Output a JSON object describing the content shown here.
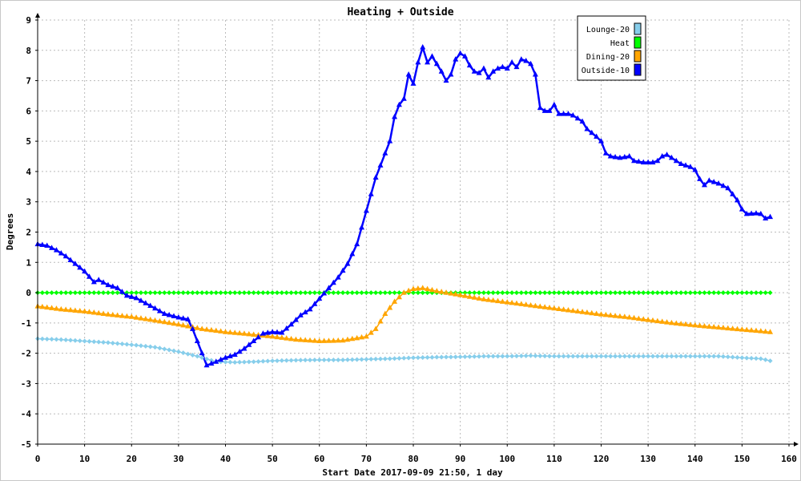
{
  "chart_data": {
    "type": "line",
    "title": "Heating + Outside",
    "xlabel": "Start Date 2017-09-09 21:50, 1 day",
    "ylabel": "Degrees",
    "xlim": [
      0,
      160
    ],
    "ylim": [
      -5,
      9
    ],
    "xticks": [
      0,
      10,
      20,
      30,
      40,
      50,
      60,
      70,
      80,
      90,
      100,
      110,
      120,
      130,
      140,
      150,
      160
    ],
    "yticks": [
      -5,
      -4,
      -3,
      -2,
      -1,
      0,
      1,
      2,
      3,
      4,
      5,
      6,
      7,
      8,
      9
    ],
    "grid": true,
    "legend_position": "top-right",
    "series": [
      {
        "name": "Lounge-20",
        "color": "#87CEEB",
        "marker": "diamond",
        "points": [
          [
            0,
            -1.52
          ],
          [
            5,
            -1.55
          ],
          [
            10,
            -1.6
          ],
          [
            15,
            -1.65
          ],
          [
            20,
            -1.72
          ],
          [
            25,
            -1.8
          ],
          [
            30,
            -1.95
          ],
          [
            34,
            -2.1
          ],
          [
            38,
            -2.28
          ],
          [
            42,
            -2.3
          ],
          [
            46,
            -2.28
          ],
          [
            50,
            -2.25
          ],
          [
            55,
            -2.23
          ],
          [
            60,
            -2.22
          ],
          [
            65,
            -2.22
          ],
          [
            70,
            -2.2
          ],
          [
            75,
            -2.18
          ],
          [
            80,
            -2.15
          ],
          [
            85,
            -2.13
          ],
          [
            90,
            -2.12
          ],
          [
            95,
            -2.1
          ],
          [
            100,
            -2.1
          ],
          [
            105,
            -2.08
          ],
          [
            110,
            -2.1
          ],
          [
            115,
            -2.1
          ],
          [
            120,
            -2.1
          ],
          [
            125,
            -2.1
          ],
          [
            130,
            -2.1
          ],
          [
            135,
            -2.1
          ],
          [
            140,
            -2.1
          ],
          [
            145,
            -2.1
          ],
          [
            150,
            -2.15
          ],
          [
            154,
            -2.18
          ],
          [
            156,
            -2.25
          ]
        ]
      },
      {
        "name": "Heat",
        "color": "#00FF00",
        "marker": "diamond",
        "points": [
          [
            0,
            0
          ],
          [
            20,
            0
          ],
          [
            40,
            0
          ],
          [
            60,
            0
          ],
          [
            80,
            0
          ],
          [
            100,
            0
          ],
          [
            120,
            0
          ],
          [
            140,
            0
          ],
          [
            156,
            0
          ]
        ]
      },
      {
        "name": "Dining-20",
        "color": "#FFA500",
        "marker": "triangle",
        "points": [
          [
            0,
            -0.45
          ],
          [
            5,
            -0.55
          ],
          [
            10,
            -0.62
          ],
          [
            15,
            -0.72
          ],
          [
            20,
            -0.8
          ],
          [
            25,
            -0.92
          ],
          [
            30,
            -1.05
          ],
          [
            35,
            -1.2
          ],
          [
            40,
            -1.3
          ],
          [
            45,
            -1.37
          ],
          [
            50,
            -1.45
          ],
          [
            55,
            -1.55
          ],
          [
            60,
            -1.6
          ],
          [
            65,
            -1.58
          ],
          [
            70,
            -1.45
          ],
          [
            72,
            -1.2
          ],
          [
            74,
            -0.7
          ],
          [
            76,
            -0.3
          ],
          [
            78,
            0.0
          ],
          [
            80,
            0.12
          ],
          [
            82,
            0.15
          ],
          [
            85,
            0.05
          ],
          [
            90,
            -0.08
          ],
          [
            95,
            -0.22
          ],
          [
            100,
            -0.32
          ],
          [
            105,
            -0.42
          ],
          [
            110,
            -0.52
          ],
          [
            115,
            -0.62
          ],
          [
            120,
            -0.72
          ],
          [
            125,
            -0.8
          ],
          [
            130,
            -0.9
          ],
          [
            135,
            -1.0
          ],
          [
            140,
            -1.08
          ],
          [
            145,
            -1.15
          ],
          [
            150,
            -1.22
          ],
          [
            156,
            -1.3
          ]
        ]
      },
      {
        "name": "Outside-10",
        "color": "#0000FF",
        "marker": "triangle",
        "points": [
          [
            0,
            1.6
          ],
          [
            2,
            1.55
          ],
          [
            4,
            1.4
          ],
          [
            6,
            1.2
          ],
          [
            8,
            0.95
          ],
          [
            10,
            0.7
          ],
          [
            12,
            0.35
          ],
          [
            13,
            0.42
          ],
          [
            15,
            0.25
          ],
          [
            17,
            0.15
          ],
          [
            19,
            -0.1
          ],
          [
            21,
            -0.18
          ],
          [
            23,
            -0.35
          ],
          [
            25,
            -0.52
          ],
          [
            27,
            -0.7
          ],
          [
            30,
            -0.82
          ],
          [
            32,
            -0.88
          ],
          [
            33,
            -1.2
          ],
          [
            34,
            -1.6
          ],
          [
            35,
            -2.0
          ],
          [
            36,
            -2.4
          ],
          [
            38,
            -2.28
          ],
          [
            40,
            -2.15
          ],
          [
            42,
            -2.05
          ],
          [
            44,
            -1.85
          ],
          [
            46,
            -1.6
          ],
          [
            48,
            -1.35
          ],
          [
            50,
            -1.3
          ],
          [
            52,
            -1.32
          ],
          [
            54,
            -1.05
          ],
          [
            56,
            -0.75
          ],
          [
            58,
            -0.55
          ],
          [
            60,
            -0.2
          ],
          [
            62,
            0.15
          ],
          [
            64,
            0.5
          ],
          [
            66,
            0.95
          ],
          [
            68,
            1.6
          ],
          [
            70,
            2.7
          ],
          [
            72,
            3.8
          ],
          [
            74,
            4.6
          ],
          [
            75,
            5.0
          ],
          [
            76,
            5.8
          ],
          [
            77,
            6.2
          ],
          [
            78,
            6.4
          ],
          [
            79,
            7.2
          ],
          [
            80,
            6.9
          ],
          [
            81,
            7.6
          ],
          [
            82,
            8.1
          ],
          [
            83,
            7.6
          ],
          [
            84,
            7.8
          ],
          [
            86,
            7.3
          ],
          [
            87,
            7.0
          ],
          [
            88,
            7.2
          ],
          [
            89,
            7.7
          ],
          [
            90,
            7.9
          ],
          [
            91,
            7.8
          ],
          [
            92,
            7.5
          ],
          [
            93,
            7.3
          ],
          [
            94,
            7.25
          ],
          [
            95,
            7.4
          ],
          [
            96,
            7.1
          ],
          [
            97,
            7.3
          ],
          [
            98,
            7.4
          ],
          [
            99,
            7.45
          ],
          [
            100,
            7.4
          ],
          [
            101,
            7.6
          ],
          [
            102,
            7.45
          ],
          [
            103,
            7.7
          ],
          [
            104,
            7.65
          ],
          [
            105,
            7.55
          ],
          [
            106,
            7.2
          ],
          [
            107,
            6.1
          ],
          [
            108,
            6.0
          ],
          [
            109,
            6.0
          ],
          [
            110,
            6.2
          ],
          [
            111,
            5.9
          ],
          [
            113,
            5.9
          ],
          [
            114,
            5.85
          ],
          [
            116,
            5.65
          ],
          [
            117,
            5.4
          ],
          [
            119,
            5.15
          ],
          [
            120,
            5.0
          ],
          [
            121,
            4.6
          ],
          [
            122,
            4.5
          ],
          [
            124,
            4.45
          ],
          [
            126,
            4.5
          ],
          [
            127,
            4.35
          ],
          [
            129,
            4.3
          ],
          [
            131,
            4.3
          ],
          [
            132,
            4.35
          ],
          [
            133,
            4.5
          ],
          [
            134,
            4.55
          ],
          [
            135,
            4.45
          ],
          [
            137,
            4.25
          ],
          [
            139,
            4.15
          ],
          [
            140,
            4.05
          ],
          [
            141,
            3.75
          ],
          [
            142,
            3.55
          ],
          [
            143,
            3.7
          ],
          [
            145,
            3.6
          ],
          [
            147,
            3.45
          ],
          [
            148,
            3.25
          ],
          [
            149,
            3.05
          ],
          [
            150,
            2.75
          ],
          [
            151,
            2.6
          ],
          [
            153,
            2.62
          ],
          [
            154,
            2.6
          ],
          [
            155,
            2.45
          ],
          [
            156,
            2.5
          ]
        ]
      }
    ]
  }
}
